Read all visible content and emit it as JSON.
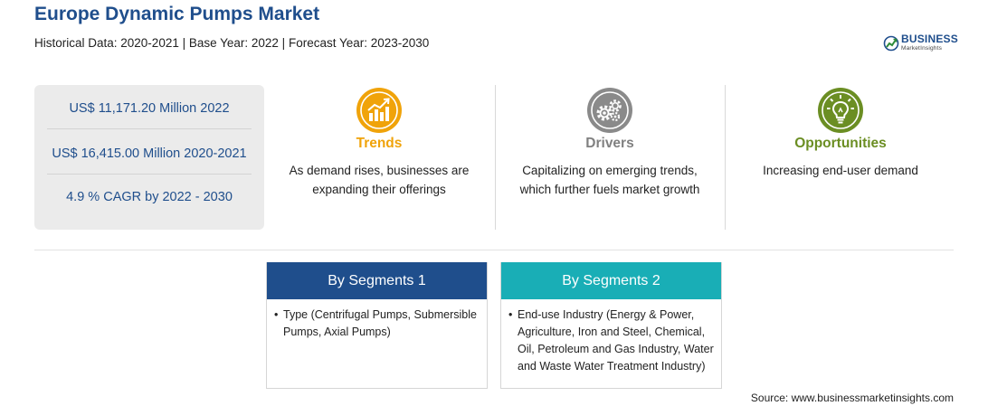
{
  "header": {
    "title": "Europe Dynamic Pumps Market",
    "subtitle": "Historical Data: 2020-2021 | Base Year: 2022 | Forecast Year: 2023-2030"
  },
  "logo": {
    "name": "BUSINESS",
    "tagline": "MarketInsights"
  },
  "stats": [
    "US$ 11,171.20 Million 2022",
    "US$ 16,415.00 Million 2020-2021",
    "4.9 % CAGR by 2022 - 2030"
  ],
  "columns": {
    "trends": {
      "label": "Trends",
      "text": "As demand rises, businesses are expanding their offerings",
      "icon": "growth-chart-icon",
      "color": "#f0a30a"
    },
    "drivers": {
      "label": "Drivers",
      "text": "Capitalizing on emerging trends, which further fuels market growth",
      "icon": "gears-icon",
      "color": "#808080"
    },
    "opportunities": {
      "label": "Opportunities",
      "text": "Increasing end-user demand",
      "icon": "lightbulb-icon",
      "color": "#6b8e23"
    }
  },
  "segments": [
    {
      "title": "By Segments 1",
      "bullet": "•",
      "text": "Type (Centrifugal Pumps, Submersible Pumps, Axial Pumps)",
      "color": "#1f4e8c"
    },
    {
      "title": "By Segments 2",
      "bullet": "•",
      "text": "End-use Industry (Energy & Power, Agriculture, Iron and Steel, Chemical, Oil, Petroleum and Gas Industry, Water and Waste Water Treatment Industry)",
      "color": "#19aeb6"
    }
  ],
  "source": "Source: www.businessmarketinsights.com"
}
